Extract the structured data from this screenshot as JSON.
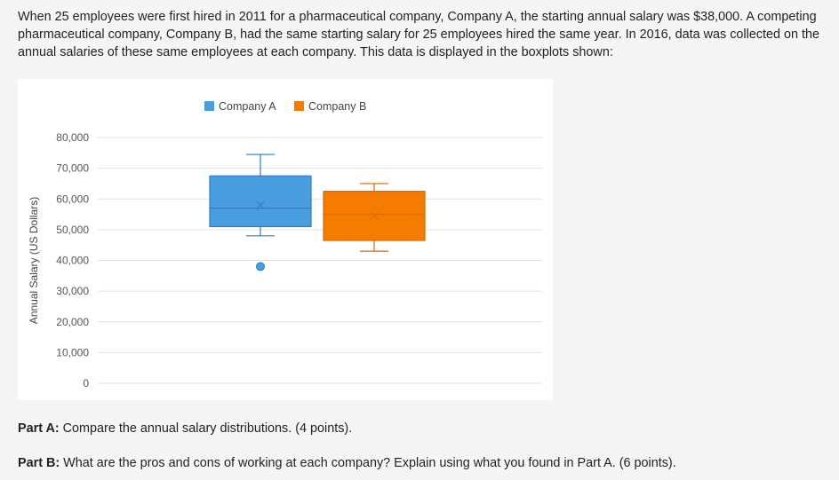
{
  "question": {
    "text": "When 25 employees were first hired in 2011 for a pharmaceutical company, Company A, the starting annual salary was $38,000. A competing pharmaceutical company, Company B, had the same starting salary for 25 employees hired the same year. In 2016, data was collected on the annual salaries of these same employees at each company. This data is displayed in the boxplots shown:"
  },
  "parts": {
    "a_label": "Part A:",
    "a_text": " Compare the annual salary distributions. (4 points).",
    "b_label": "Part B:",
    "b_text": " What are the pros and cons of working at each company? Explain using what you found in Part A. (6 points)."
  },
  "chart_data": {
    "type": "box",
    "ylabel": "Annual Salary (US Dollars)",
    "ylim": [
      0,
      80000
    ],
    "yticks": [
      0,
      10000,
      20000,
      30000,
      40000,
      50000,
      60000,
      70000,
      80000
    ],
    "ytick_labels": [
      "0",
      "10,000",
      "20,000",
      "30,000",
      "40,000",
      "50,000",
      "60,000",
      "70,000",
      "80,000"
    ],
    "grid": true,
    "legend_position": "top",
    "series": [
      {
        "name": "Company A",
        "color": "#4a9ee0",
        "edge_color": "#2f7bc0",
        "whisker_low": 48000,
        "q1": 51000,
        "median": 57000,
        "q3": 67500,
        "whisker_high": 74500,
        "mean": 58000,
        "outliers": [
          38000
        ]
      },
      {
        "name": "Company B",
        "color": "#f57c00",
        "edge_color": "#d96a00",
        "whisker_low": 43000,
        "q1": 46500,
        "median": 55000,
        "q3": 62500,
        "whisker_high": 65000,
        "mean": 54500,
        "outliers": []
      }
    ]
  }
}
